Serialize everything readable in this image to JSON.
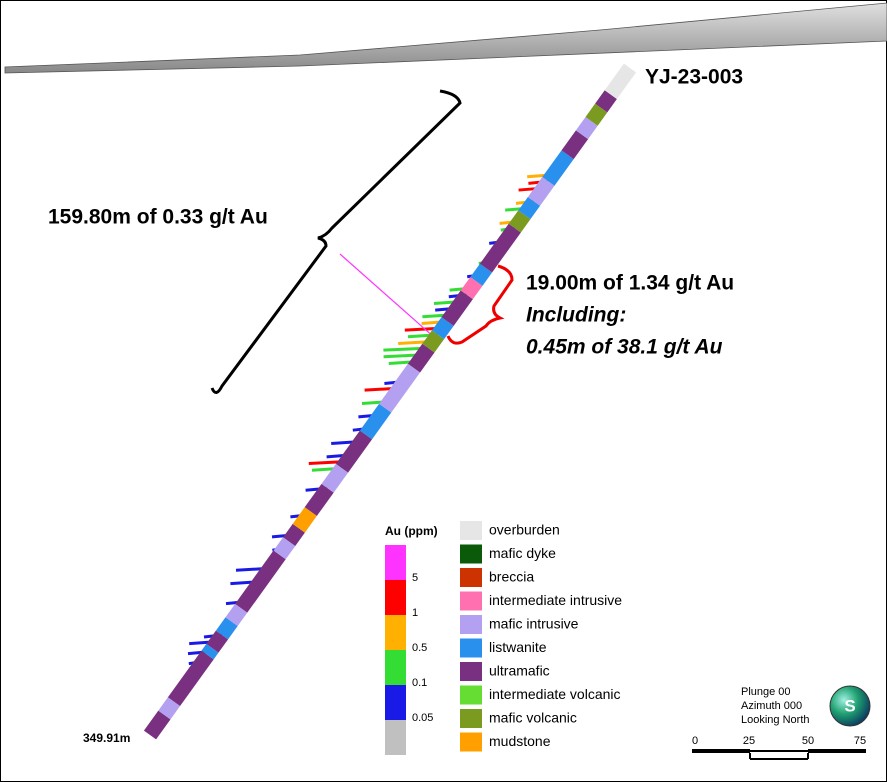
{
  "hole": {
    "name": "YJ-23-003",
    "depth_label": "349.91m"
  },
  "annotations": {
    "main_interval": "159.80m of 0.33 g/t Au",
    "sub_interval": "19.00m of 1.34 g/t Au",
    "including": "Including:",
    "high_grade": "0.45m of 38.1 g/t Au"
  },
  "au_legend": {
    "title": "Au (ppm)",
    "colors": [
      "#ff33ff",
      "#ff0000",
      "#ffb000",
      "#33dd33",
      "#1a1ae6",
      "#c0c0c0"
    ],
    "thresholds": [
      "5",
      "1",
      "0.5",
      "0.1",
      "0.05"
    ]
  },
  "lithology_legend": [
    {
      "label": "overburden",
      "color": "#e6e6e6"
    },
    {
      "label": "mafic dyke",
      "color": "#0a5a0a"
    },
    {
      "label": "breccia",
      "color": "#cc3300"
    },
    {
      "label": "intermediate intrusive",
      "color": "#ff70b0"
    },
    {
      "label": "mafic intrusive",
      "color": "#b4a0f0"
    },
    {
      "label": "listwanite",
      "color": "#2a90ee"
    },
    {
      "label": "ultramafic",
      "color": "#7a3080"
    },
    {
      "label": "intermediate volcanic",
      "color": "#66dd33"
    },
    {
      "label": "mafic volcanic",
      "color": "#7a9a20"
    },
    {
      "label": "mudstone",
      "color": "#ffa000"
    }
  ],
  "view": {
    "plunge": "Plunge 00",
    "azimuth": "Azimuth 000",
    "looking": "Looking North",
    "compass": "S"
  },
  "scale_bar": {
    "ticks": [
      0,
      25,
      50,
      75
    ]
  }
}
